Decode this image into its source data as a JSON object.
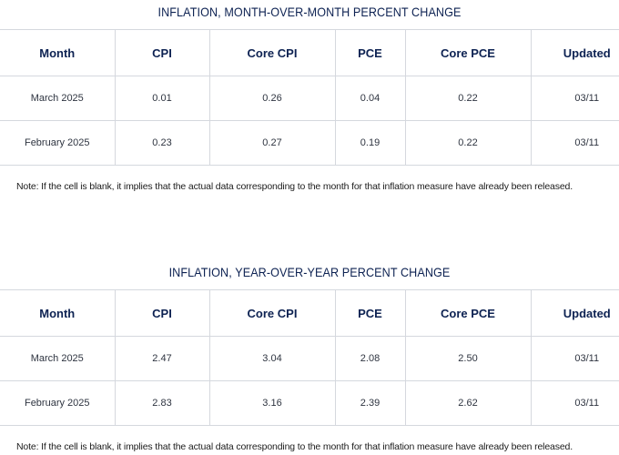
{
  "mom": {
    "title": "INFLATION, MONTH-OVER-MONTH PERCENT CHANGE",
    "headers": [
      "Month",
      "CPI",
      "Core CPI",
      "PCE",
      "Core PCE",
      "Updated"
    ],
    "rows": [
      [
        "March 2025",
        "0.01",
        "0.26",
        "0.04",
        "0.22",
        "03/11"
      ],
      [
        "February 2025",
        "0.23",
        "0.27",
        "0.19",
        "0.22",
        "03/11"
      ]
    ],
    "note": "Note: If the cell is blank, it implies that the actual data corresponding to the month for that inflation measure have already been released."
  },
  "yoy": {
    "title": "INFLATION, YEAR-OVER-YEAR PERCENT CHANGE",
    "headers": [
      "Month",
      "CPI",
      "Core CPI",
      "PCE",
      "Core PCE",
      "Updated"
    ],
    "rows": [
      [
        "March 2025",
        "2.47",
        "3.04",
        "2.08",
        "2.50",
        "03/11"
      ],
      [
        "February 2025",
        "2.83",
        "3.16",
        "2.39",
        "2.62",
        "03/11"
      ]
    ],
    "note": "Note: If the cell is blank, it implies that the actual data corresponding to the month for that inflation measure have already been released."
  }
}
